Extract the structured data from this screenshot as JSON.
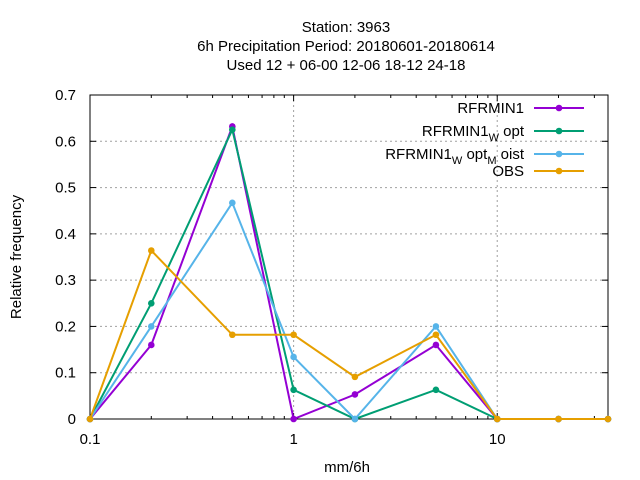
{
  "chart_data": {
    "type": "line",
    "title": [
      "Station:     3963",
      "6h Precipitation  Period: 20180601-20180614",
      "Used  12 + 06-00 12-06 18-12 24-18"
    ],
    "xlabel": "mm/6h",
    "ylabel": "Relative frequency",
    "xscale": "log",
    "xlim": [
      0.1,
      35
    ],
    "ylim": [
      0,
      0.7
    ],
    "xticks": [
      0.1,
      1,
      10
    ],
    "xtick_labels": [
      "0.1",
      "1",
      "10"
    ],
    "yticks": [
      0,
      0.1,
      0.2,
      0.3,
      0.4,
      0.5,
      0.6,
      0.7
    ],
    "ytick_labels": [
      "0",
      "0.1",
      "0.2",
      "0.3",
      "0.4",
      "0.5",
      "0.6",
      "0.7"
    ],
    "grid": true,
    "legend_position": "top-right",
    "x": [
      0.1,
      0.2,
      0.5,
      1,
      2,
      5,
      10,
      20,
      35
    ],
    "series": [
      {
        "name": "RFRMIN1",
        "label_main": "RFRMIN1",
        "label_parts": [
          {
            "t": "RFRMIN1",
            "sub": false
          }
        ],
        "color": "#9400d3",
        "values": [
          0,
          0.16,
          0.632,
          0,
          0.053,
          0.16,
          0,
          0,
          0
        ]
      },
      {
        "name": "RFRMIN1_W opt",
        "label_parts": [
          {
            "t": "RFRMIN1",
            "sub": false
          },
          {
            "t": "W",
            "sub": true
          },
          {
            "t": " opt",
            "sub": false
          }
        ],
        "color": "#009e73",
        "values": [
          0,
          0.25,
          0.625,
          0.063,
          0,
          0.063,
          0,
          0,
          0
        ]
      },
      {
        "name": "RFRMIN1_W opt_M oist",
        "label_parts": [
          {
            "t": "RFRMIN1",
            "sub": false
          },
          {
            "t": "W",
            "sub": true
          },
          {
            "t": " opt",
            "sub": false
          },
          {
            "t": "M",
            "sub": true
          },
          {
            "t": " oist",
            "sub": false
          }
        ],
        "color": "#56b4e9",
        "values": [
          0,
          0.2,
          0.467,
          0.134,
          0,
          0.2,
          0,
          0,
          0
        ]
      },
      {
        "name": "OBS",
        "label_parts": [
          {
            "t": "OBS",
            "sub": false
          }
        ],
        "color": "#e69f00",
        "values": [
          0,
          0.364,
          0.182,
          0.182,
          0.091,
          0.182,
          0,
          0,
          0
        ]
      }
    ]
  }
}
